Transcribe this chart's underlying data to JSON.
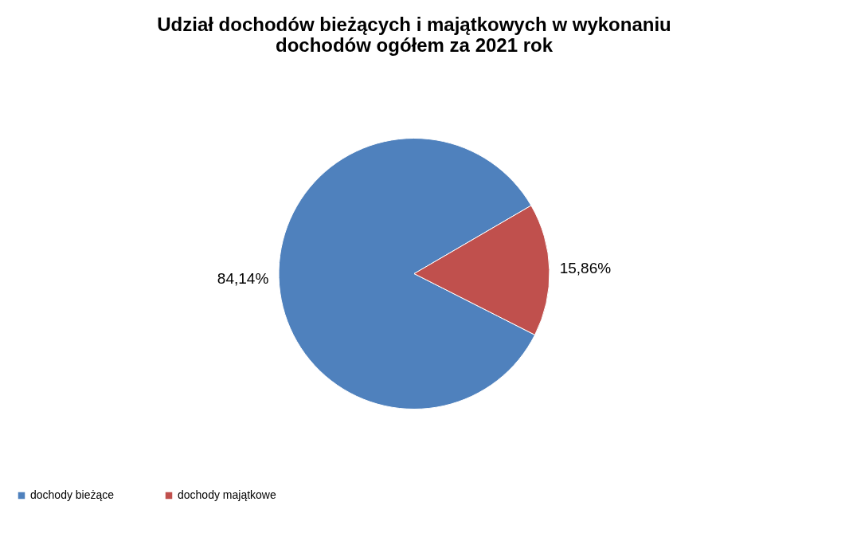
{
  "chart_data": {
    "type": "pie",
    "title": "Udział dochodów  bieżących i majątkowych  w wykonaniu\ndochodów  ogółem za 2021 rok",
    "categories": [
      "dochody bieżące",
      "dochody majątkowe"
    ],
    "values": [
      84.14,
      15.86
    ],
    "colors": [
      "#4f81bd",
      "#c0504d"
    ],
    "value_labels": [
      "84,14%",
      "15,86%"
    ],
    "legend": "bottom"
  }
}
